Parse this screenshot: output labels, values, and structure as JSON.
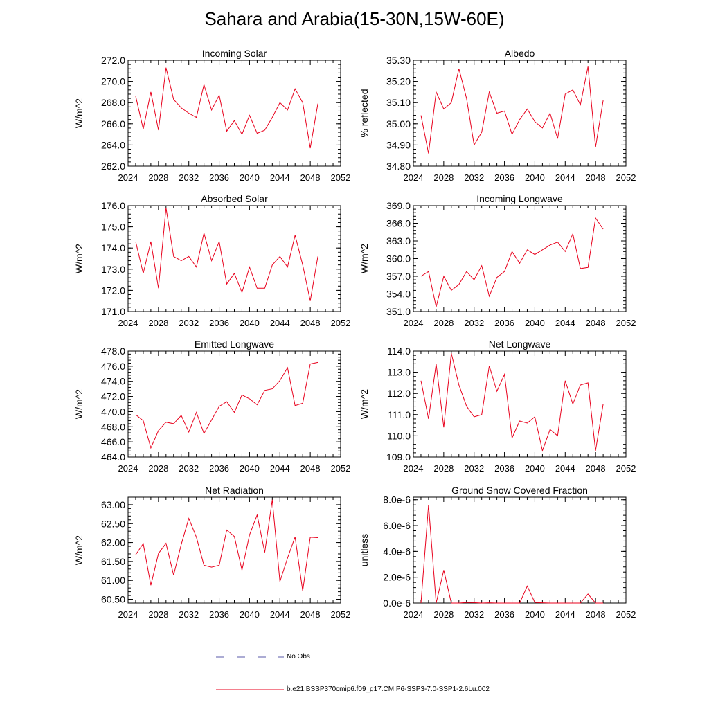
{
  "page": {
    "title": "Sahara and Arabia(15-30N,15W-60E)"
  },
  "legend": {
    "obs_label": "No Obs",
    "obs_color": "#5a5aa8",
    "model_label": "b.e21.BSSP370cmip6.f09_g17.CMIP6-SSP3-7.0-SSP1-2.6Lu.002",
    "model_color": "#e8001c"
  },
  "chart_data": [
    {
      "type": "line",
      "title": "Incoming Solar",
      "ylabel": "W/m^2",
      "xlim": [
        2024,
        2052
      ],
      "ylim": [
        262.0,
        272.0
      ],
      "xticks": [
        "2024",
        "2028",
        "2032",
        "2036",
        "2040",
        "2044",
        "2048",
        "2052"
      ],
      "yticks": [
        "262.0",
        "264.0",
        "266.0",
        "268.0",
        "270.0",
        "272.0"
      ],
      "x": [
        2025,
        2026,
        2027,
        2028,
        2029,
        2030,
        2031,
        2032,
        2033,
        2034,
        2035,
        2036,
        2037,
        2038,
        2039,
        2040,
        2041,
        2042,
        2043,
        2044,
        2045,
        2046,
        2047,
        2048,
        2049
      ],
      "values": [
        268.6,
        265.5,
        269.0,
        265.4,
        271.3,
        268.3,
        267.5,
        267.0,
        266.6,
        269.7,
        267.3,
        268.7,
        265.3,
        266.3,
        265.0,
        266.8,
        265.1,
        265.4,
        266.6,
        268.0,
        267.3,
        269.3,
        268.0,
        263.7,
        267.9
      ]
    },
    {
      "type": "line",
      "title": "Albedo",
      "ylabel": "% reflected",
      "xlim": [
        2024,
        2052
      ],
      "ylim": [
        34.8,
        35.3
      ],
      "xticks": [
        "2024",
        "2028",
        "2032",
        "2036",
        "2040",
        "2044",
        "2048",
        "2052"
      ],
      "yticks": [
        "34.80",
        "34.90",
        "35.00",
        "35.10",
        "35.20",
        "35.30"
      ],
      "x": [
        2025,
        2026,
        2027,
        2028,
        2029,
        2030,
        2031,
        2032,
        2033,
        2034,
        2035,
        2036,
        2037,
        2038,
        2039,
        2040,
        2041,
        2042,
        2043,
        2044,
        2045,
        2046,
        2047,
        2048,
        2049
      ],
      "values": [
        35.04,
        34.86,
        35.15,
        35.07,
        35.1,
        35.26,
        35.12,
        34.9,
        34.96,
        35.15,
        35.05,
        35.06,
        34.95,
        35.02,
        35.07,
        35.01,
        34.98,
        35.05,
        34.93,
        35.14,
        35.16,
        35.09,
        35.27,
        34.89,
        35.11
      ]
    },
    {
      "type": "line",
      "title": "Absorbed Solar",
      "ylabel": "W/m^2",
      "xlim": [
        2024,
        2052
      ],
      "ylim": [
        171.0,
        176.0
      ],
      "xticks": [
        "2024",
        "2028",
        "2032",
        "2036",
        "2040",
        "2044",
        "2048",
        "2052"
      ],
      "yticks": [
        "171.0",
        "172.0",
        "173.0",
        "174.0",
        "175.0",
        "176.0"
      ],
      "x": [
        2025,
        2026,
        2027,
        2028,
        2029,
        2030,
        2031,
        2032,
        2033,
        2034,
        2035,
        2036,
        2037,
        2038,
        2039,
        2040,
        2041,
        2042,
        2043,
        2044,
        2045,
        2046,
        2047,
        2048,
        2049
      ],
      "values": [
        174.3,
        172.8,
        174.3,
        172.1,
        175.9,
        173.6,
        173.4,
        173.6,
        173.1,
        174.7,
        173.4,
        174.3,
        172.3,
        172.8,
        171.9,
        173.1,
        172.1,
        172.1,
        173.2,
        173.6,
        173.1,
        174.6,
        173.2,
        171.5,
        173.6
      ]
    },
    {
      "type": "line",
      "title": "Incoming Longwave",
      "ylabel": "W/m^2",
      "xlim": [
        2024,
        2052
      ],
      "ylim": [
        351.0,
        369.0
      ],
      "xticks": [
        "2024",
        "2028",
        "2032",
        "2036",
        "2040",
        "2044",
        "2048",
        "2052"
      ],
      "yticks": [
        "351.0",
        "354.0",
        "357.0",
        "360.0",
        "363.0",
        "366.0",
        "369.0"
      ],
      "x": [
        2025,
        2026,
        2027,
        2028,
        2029,
        2030,
        2031,
        2032,
        2033,
        2034,
        2035,
        2036,
        2037,
        2038,
        2039,
        2040,
        2041,
        2042,
        2043,
        2044,
        2045,
        2046,
        2047,
        2048,
        2049
      ],
      "values": [
        357.0,
        357.8,
        351.8,
        357.0,
        354.6,
        355.6,
        357.8,
        356.4,
        358.8,
        353.6,
        356.8,
        357.8,
        361.2,
        359.2,
        361.5,
        360.7,
        361.5,
        362.3,
        362.8,
        361.2,
        364.2,
        358.3,
        358.5,
        366.9,
        365.0
      ]
    },
    {
      "type": "line",
      "title": "Emitted Longwave",
      "ylabel": "W/m^2",
      "xlim": [
        2024,
        2052
      ],
      "ylim": [
        464.0,
        478.0
      ],
      "xticks": [
        "2024",
        "2028",
        "2032",
        "2036",
        "2040",
        "2044",
        "2048",
        "2052"
      ],
      "yticks": [
        "464.0",
        "466.0",
        "468.0",
        "470.0",
        "472.0",
        "474.0",
        "476.0",
        "478.0"
      ],
      "x": [
        2025,
        2026,
        2027,
        2028,
        2029,
        2030,
        2031,
        2032,
        2033,
        2034,
        2035,
        2036,
        2037,
        2038,
        2039,
        2040,
        2041,
        2042,
        2043,
        2044,
        2045,
        2046,
        2047,
        2048,
        2049
      ],
      "values": [
        469.6,
        468.8,
        465.2,
        467.5,
        468.6,
        468.4,
        469.5,
        467.3,
        469.9,
        467.1,
        468.9,
        470.7,
        471.3,
        469.9,
        472.2,
        471.7,
        470.9,
        472.8,
        473.0,
        474.1,
        475.8,
        470.8,
        471.1,
        476.3,
        476.5
      ]
    },
    {
      "type": "line",
      "title": "Net Longwave",
      "ylabel": "W/m^2",
      "xlim": [
        2024,
        2052
      ],
      "ylim": [
        109.0,
        114.0
      ],
      "xticks": [
        "2024",
        "2028",
        "2032",
        "2036",
        "2040",
        "2044",
        "2048",
        "2052"
      ],
      "yticks": [
        "109.0",
        "110.0",
        "111.0",
        "112.0",
        "113.0",
        "114.0"
      ],
      "x": [
        2025,
        2026,
        2027,
        2028,
        2029,
        2030,
        2031,
        2032,
        2033,
        2034,
        2035,
        2036,
        2037,
        2038,
        2039,
        2040,
        2041,
        2042,
        2043,
        2044,
        2045,
        2046,
        2047,
        2048,
        2049
      ],
      "values": [
        112.6,
        110.8,
        113.4,
        110.4,
        113.9,
        112.4,
        111.4,
        110.9,
        111.0,
        113.3,
        112.1,
        112.9,
        109.9,
        110.7,
        110.6,
        110.9,
        109.3,
        110.3,
        110.0,
        112.6,
        111.5,
        112.4,
        112.5,
        109.3,
        111.5
      ]
    },
    {
      "type": "line",
      "title": "Net Radiation",
      "ylabel": "W/m^2",
      "xlim": [
        2024,
        2052
      ],
      "ylim": [
        60.4,
        63.2
      ],
      "xticks": [
        "2024",
        "2028",
        "2032",
        "2036",
        "2040",
        "2044",
        "2048",
        "2052"
      ],
      "yticks": [
        "60.50",
        "61.00",
        "61.50",
        "62.00",
        "62.50",
        "63.00"
      ],
      "x": [
        2025,
        2026,
        2027,
        2028,
        2029,
        2030,
        2031,
        2032,
        2033,
        2034,
        2035,
        2036,
        2037,
        2038,
        2039,
        2040,
        2041,
        2042,
        2043,
        2044,
        2045,
        2046,
        2047,
        2048,
        2049
      ],
      "values": [
        61.68,
        61.97,
        60.87,
        61.71,
        61.98,
        61.14,
        61.95,
        62.64,
        62.14,
        61.4,
        61.35,
        61.4,
        62.33,
        62.16,
        61.27,
        62.2,
        62.73,
        61.74,
        63.13,
        60.97,
        61.59,
        62.15,
        60.72,
        62.14,
        62.13
      ]
    },
    {
      "type": "line",
      "title": "Ground Snow Covered Fraction",
      "ylabel": "unitless",
      "xlim": [
        2024,
        2052
      ],
      "ylim": [
        0.0,
        8.2
      ],
      "yscale_note": "",
      "xticks": [
        "2024",
        "2028",
        "2032",
        "2036",
        "2040",
        "2044",
        "2048",
        "2052"
      ],
      "yticks": [
        "0.0e-6",
        "2.0e-6",
        "4.0e-6",
        "6.0e-6",
        "8.0e-6"
      ],
      "x": [
        2025,
        2026,
        2027,
        2028,
        2029,
        2030,
        2031,
        2032,
        2033,
        2034,
        2035,
        2036,
        2037,
        2038,
        2039,
        2040,
        2041,
        2042,
        2043,
        2044,
        2045,
        2046,
        2047,
        2048,
        2049
      ],
      "values": [
        0.0,
        7.6,
        0.0,
        2.55,
        0.0,
        0.0,
        0.05,
        0.03,
        0.0,
        0.02,
        0.0,
        0.0,
        0.0,
        0.0,
        1.32,
        0.05,
        0.02,
        0.0,
        0.0,
        0.0,
        0.0,
        0.0,
        0.7,
        0.0,
        0.0
      ]
    }
  ]
}
